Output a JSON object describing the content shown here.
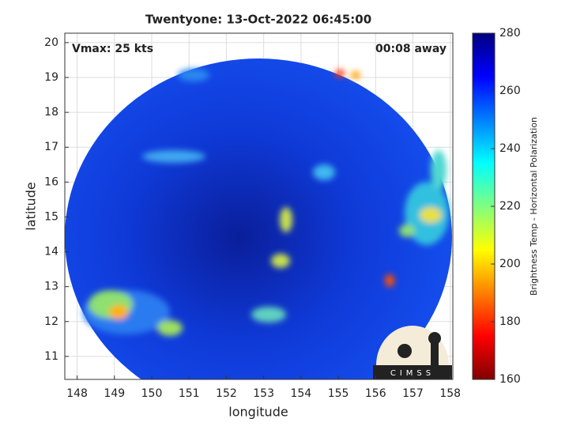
{
  "chart_data": {
    "type": "image",
    "title": "Twentyone: 13-Oct-2022 06:45:00",
    "annotations": {
      "vmax": "Vmax: 25 kts",
      "away": "00:08 away",
      "logo": "CIMSS"
    },
    "xlabel": "longitude",
    "ylabel": "latitude",
    "xlim": [
      147.67,
      158.07
    ],
    "xticks": [
      148,
      149,
      150,
      151,
      152,
      153,
      154,
      155,
      156,
      157,
      158
    ],
    "ylim": [
      10.34,
      20.27
    ],
    "yticks": [
      11,
      12,
      13,
      14,
      15,
      16,
      17,
      18,
      19,
      20
    ],
    "grid": true,
    "colorbar": {
      "label": "Brightness Temp - Horizontal Polarization",
      "clim": [
        160,
        280
      ],
      "ticks": [
        160,
        180,
        200,
        220,
        240,
        260,
        280
      ],
      "colormap": "jet"
    }
  }
}
